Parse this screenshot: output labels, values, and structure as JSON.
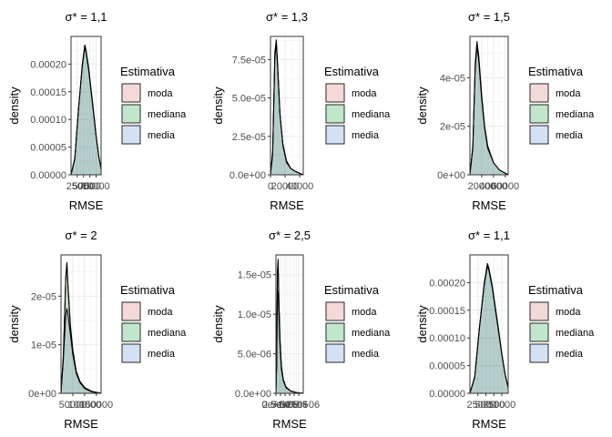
{
  "colors": {
    "moda": "#F8766D",
    "mediana": "#00BA38",
    "media": "#619CFF",
    "fill_alpha": 0.2,
    "grid": "#EBEBEB",
    "border": "#333333",
    "text": "#000000",
    "tick_text": "#4D4D4D"
  },
  "chart_data": [
    {
      "type": "area",
      "title": "σ* = 1,1",
      "xlabel": "RMSE",
      "ylabel": "density",
      "xlim": [
        0,
        12000
      ],
      "ylim": [
        0,
        0.00025
      ],
      "x_ticks": [
        2500,
        5000,
        7500,
        10000
      ],
      "x_tick_labels": [
        "2500",
        "5000",
        "7500",
        "10000"
      ],
      "y_ticks": [
        0,
        5e-05,
        0.0001,
        0.00015,
        0.0002
      ],
      "y_tick_labels": [
        "0.00000",
        "0.00005",
        "0.00010",
        "0.00015",
        "0.00020"
      ],
      "legend": {
        "title": "Estimativa",
        "position": "right",
        "entries": [
          "moda",
          "mediana",
          "media"
        ]
      },
      "series": [
        {
          "name": "moda",
          "x": [
            0,
            1500,
            3000,
            4500,
            5500,
            6000,
            7000,
            8000,
            9000,
            10000,
            11000,
            12000
          ],
          "y": [
            0.0,
            3e-05,
            0.00012,
            0.000195,
            0.00023,
            0.00022,
            0.00019,
            0.00015,
            0.00011,
            7e-05,
            3.5e-05,
            1e-05
          ]
        },
        {
          "name": "mediana",
          "x": [
            0,
            1500,
            3000,
            4500,
            5500,
            6000,
            7000,
            8000,
            9000,
            10000,
            11000,
            12000
          ],
          "y": [
            0.0,
            3e-05,
            0.00012,
            0.0002,
            0.000235,
            0.000225,
            0.000195,
            0.000155,
            0.000115,
            7.2e-05,
            3.6e-05,
            1e-05
          ]
        },
        {
          "name": "media",
          "x": [
            0,
            1500,
            3000,
            4500,
            5500,
            6000,
            7000,
            8000,
            9000,
            10000,
            11000,
            12000
          ],
          "y": [
            0.0,
            2.8e-05,
            0.000118,
            0.000198,
            0.000232,
            0.000222,
            0.000192,
            0.000152,
            0.000112,
            7e-05,
            3.5e-05,
            1e-05
          ]
        }
      ]
    },
    {
      "type": "area",
      "title": "σ* = 1,3",
      "xlabel": "RMSE",
      "ylabel": "density",
      "xlim": [
        0,
        45000
      ],
      "ylim": [
        0,
        9e-05
      ],
      "x_ticks": [
        0,
        20000,
        40000
      ],
      "x_tick_labels": [
        "0",
        "20000",
        "40000"
      ],
      "y_ticks": [
        0,
        2.5e-05,
        5e-05,
        7.5e-05
      ],
      "y_tick_labels": [
        "0.0e+00",
        "2.5e-05",
        "5.0e-05",
        "7.5e-05"
      ],
      "legend": {
        "title": "Estimativa",
        "position": "right",
        "entries": [
          "moda",
          "mediana",
          "media"
        ]
      },
      "series": [
        {
          "name": "moda",
          "x": [
            0,
            3000,
            6000,
            8000,
            10000,
            13000,
            17000,
            22000,
            28000,
            35000,
            45000
          ],
          "y": [
            0.0,
            1.5e-05,
            8e-05,
            8.8e-05,
            7e-05,
            4e-05,
            2e-05,
            9e-06,
            4e-06,
            2e-06,
            0.0
          ]
        },
        {
          "name": "mediana",
          "x": [
            0,
            3000,
            6000,
            8000,
            10000,
            13000,
            17000,
            22000,
            28000,
            35000,
            45000
          ],
          "y": [
            0.0,
            1.4e-05,
            7.8e-05,
            8.6e-05,
            6.9e-05,
            4e-05,
            2e-05,
            9e-06,
            4e-06,
            2e-06,
            0.0
          ]
        },
        {
          "name": "media",
          "x": [
            0,
            3000,
            6000,
            8000,
            10000,
            13000,
            17000,
            22000,
            28000,
            35000,
            45000
          ],
          "y": [
            0.0,
            1.3e-05,
            7.6e-05,
            8.5e-05,
            6.8e-05,
            3.9e-05,
            1.9e-05,
            8e-06,
            4e-06,
            2e-06,
            0.0
          ]
        }
      ]
    },
    {
      "type": "area",
      "title": "σ* = 1,5",
      "xlabel": "RMSE",
      "ylabel": "density",
      "xlim": [
        0,
        65000
      ],
      "ylim": [
        0,
        5.7e-05
      ],
      "x_ticks": [
        20000,
        40000,
        60000
      ],
      "x_tick_labels": [
        "20000",
        "40000",
        "60000"
      ],
      "y_ticks": [
        0,
        2e-05,
        4e-05
      ],
      "y_tick_labels": [
        "0e+00",
        "2e-05",
        "4e-05"
      ],
      "legend": {
        "title": "Estimativa",
        "position": "right",
        "entries": [
          "moda",
          "mediana",
          "media"
        ]
      },
      "series": [
        {
          "name": "moda",
          "x": [
            0,
            5000,
            9000,
            12000,
            15000,
            20000,
            25000,
            30000,
            40000,
            50000,
            65000
          ],
          "y": [
            0.0,
            1.2e-05,
            4.5e-05,
            5.4e-05,
            4.8e-05,
            3.2e-05,
            2e-05,
            1.2e-05,
            5e-06,
            2e-06,
            0.0
          ]
        },
        {
          "name": "mediana",
          "x": [
            0,
            5000,
            9000,
            12000,
            15000,
            20000,
            25000,
            30000,
            40000,
            50000,
            65000
          ],
          "y": [
            0.0,
            1.2e-05,
            4.6e-05,
            5.5e-05,
            4.9e-05,
            3.3e-05,
            2e-05,
            1.2e-05,
            5e-06,
            2e-06,
            0.0
          ]
        },
        {
          "name": "media",
          "x": [
            0,
            5000,
            9000,
            12000,
            15000,
            20000,
            25000,
            30000,
            40000,
            50000,
            65000
          ],
          "y": [
            0.0,
            1.1e-05,
            4.4e-05,
            5.3e-05,
            4.7e-05,
            3.1e-05,
            1.9e-05,
            1.1e-05,
            5e-06,
            2e-06,
            0.0
          ]
        }
      ]
    },
    {
      "type": "area",
      "title": "σ* = 2",
      "xlabel": "RMSE",
      "ylabel": "density",
      "xlim": [
        0,
        170000
      ],
      "ylim": [
        0,
        2.85e-05
      ],
      "x_ticks": [
        50000,
        100000,
        150000
      ],
      "x_tick_labels": [
        "50000",
        "100000",
        "150000"
      ],
      "y_ticks": [
        0,
        1e-05,
        2e-05
      ],
      "y_tick_labels": [
        "0e+00",
        "1e-05",
        "2e-05"
      ],
      "legend": {
        "title": "Estimativa",
        "position": "right",
        "entries": [
          "moda",
          "mediana",
          "media"
        ]
      },
      "series": [
        {
          "name": "moda",
          "x": [
            0,
            10000,
            20000,
            25000,
            30000,
            40000,
            50000,
            65000,
            80000,
            100000,
            130000,
            170000
          ],
          "y": [
            0.0,
            8e-06,
            2.4e-05,
            2.7e-05,
            2.2e-05,
            1.4e-05,
            9e-06,
            4.5e-06,
            2.5e-06,
            1.2e-06,
            4e-07,
            0.0
          ]
        },
        {
          "name": "mediana",
          "x": [
            0,
            10000,
            20000,
            25000,
            30000,
            40000,
            50000,
            65000,
            80000,
            100000,
            130000,
            170000
          ],
          "y": [
            0.0,
            7.5e-06,
            2.35e-05,
            2.65e-05,
            2.15e-05,
            1.35e-05,
            8.5e-06,
            4.3e-06,
            2.4e-06,
            1.1e-06,
            4e-07,
            0.0
          ]
        },
        {
          "name": "media",
          "x": [
            0,
            10000,
            20000,
            25000,
            30000,
            40000,
            50000,
            65000,
            80000,
            100000,
            130000,
            170000
          ],
          "y": [
            0.0,
            7e-06,
            1.6e-05,
            1.75e-05,
            1.6e-05,
            1.2e-05,
            8e-06,
            4e-06,
            2.2e-06,
            1e-06,
            3e-07,
            0.0
          ]
        }
      ]
    },
    {
      "type": "area",
      "title": "σ* = 2,5",
      "xlabel": "RMSE",
      "ylabel": "density",
      "xlim": [
        0,
        1500000
      ],
      "ylim": [
        0,
        1.75e-05
      ],
      "x_ticks": [
        0,
        250000,
        500000,
        750000,
        1000000,
        1250000
      ],
      "x_tick_labels": [
        "0e+00",
        "2.5e+05",
        "5e+05",
        "7.5e+05",
        "1e+06",
        "1.25e+06"
      ],
      "y_ticks": [
        0,
        5e-06,
        1e-05,
        1.5e-05
      ],
      "y_tick_labels": [
        "0.0e+00",
        "5.0e-06",
        "1.0e-05",
        "1.5e-05"
      ],
      "legend": {
        "title": "Estimativa",
        "position": "right",
        "entries": [
          "moda",
          "mediana",
          "media"
        ]
      },
      "series": [
        {
          "name": "moda",
          "x": [
            0,
            40000,
            80000,
            120000,
            160000,
            220000,
            300000,
            400000,
            550000,
            800000,
            1100000,
            1500000
          ],
          "y": [
            0.0,
            4e-06,
            1.55e-05,
            1.7e-05,
            1.2e-05,
            7e-06,
            3.5e-06,
            1.8e-06,
            8e-07,
            3e-07,
            1e-07,
            0.0
          ]
        },
        {
          "name": "mediana",
          "x": [
            0,
            40000,
            80000,
            120000,
            160000,
            220000,
            300000,
            400000,
            550000,
            800000,
            1100000,
            1500000
          ],
          "y": [
            0.0,
            3.8e-06,
            1.5e-05,
            1.65e-05,
            1.18e-05,
            6.8e-06,
            3.4e-06,
            1.7e-06,
            8e-07,
            3e-07,
            1e-07,
            0.0
          ]
        },
        {
          "name": "media",
          "x": [
            0,
            40000,
            80000,
            120000,
            160000,
            220000,
            300000,
            400000,
            550000,
            800000,
            1100000,
            1500000
          ],
          "y": [
            0.0,
            3.5e-06,
            1.2e-05,
            1.3e-05,
            1e-05,
            6e-06,
            3e-06,
            1.6e-06,
            7e-07,
            3e-07,
            1e-07,
            0.0
          ]
        }
      ]
    },
    {
      "type": "area",
      "title": "σ* = 1,1",
      "xlabel": "RMSE",
      "ylabel": "density",
      "xlim": [
        0,
        12000
      ],
      "ylim": [
        0,
        0.00025
      ],
      "x_ticks": [
        2500,
        5000,
        7500,
        10000
      ],
      "x_tick_labels": [
        "2500",
        "5000",
        "7500",
        "10000"
      ],
      "y_ticks": [
        0,
        5e-05,
        0.0001,
        0.00015,
        0.0002
      ],
      "y_tick_labels": [
        "0.00000",
        "0.00005",
        "0.00010",
        "0.00015",
        "0.00020"
      ],
      "legend": {
        "title": "Estimativa",
        "position": "right",
        "entries": [
          "moda",
          "mediana",
          "media"
        ]
      },
      "series": [
        {
          "name": "moda",
          "x": [
            0,
            1500,
            3000,
            4500,
            5500,
            6000,
            7000,
            8000,
            9000,
            10000,
            11000,
            12000
          ],
          "y": [
            0.0,
            3e-05,
            0.00012,
            0.000195,
            0.00023,
            0.00022,
            0.00019,
            0.00015,
            0.00011,
            7e-05,
            3.5e-05,
            1e-05
          ]
        },
        {
          "name": "mediana",
          "x": [
            0,
            1500,
            3000,
            4500,
            5500,
            6000,
            7000,
            8000,
            9000,
            10000,
            11000,
            12000
          ],
          "y": [
            0.0,
            3e-05,
            0.00012,
            0.0002,
            0.000235,
            0.000225,
            0.000195,
            0.000155,
            0.000115,
            7.2e-05,
            3.6e-05,
            1e-05
          ]
        },
        {
          "name": "media",
          "x": [
            0,
            1500,
            3000,
            4500,
            5500,
            6000,
            7000,
            8000,
            9000,
            10000,
            11000,
            12000
          ],
          "y": [
            0.0,
            2.8e-05,
            0.000118,
            0.000198,
            0.000232,
            0.000222,
            0.000192,
            0.000152,
            0.000112,
            7e-05,
            3.5e-05,
            1e-05
          ]
        }
      ]
    }
  ]
}
